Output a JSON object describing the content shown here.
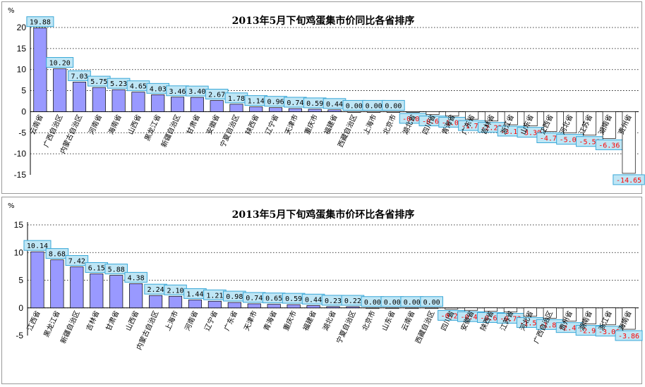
{
  "colors": {
    "positive_bar": "#9999ff",
    "negative_bar": "#ffffff",
    "bar_stroke": "#000000",
    "label_box": "#bfe6f5",
    "label_border": "#3aa8d8",
    "positive_text": "#000000",
    "negative_text": "#ff0000",
    "grid": "#000000"
  },
  "chart_data": [
    {
      "type": "bar",
      "unit": "%",
      "title": "2013年5月下旬鸡蛋集市价同比各省排序",
      "ylim": [
        -15,
        20
      ],
      "yticks": [
        20,
        15,
        10,
        5,
        0,
        -5,
        -10,
        -15
      ],
      "grid": "dotted horizontal",
      "categories": [
        "云南省",
        "广西自治区",
        "内蒙古自治区",
        "河南省",
        "海南省",
        "山西省",
        "黑龙江省",
        "新疆自治区",
        "甘肃省",
        "安徽省",
        "宁夏自治区",
        "陕西省",
        "辽宁省",
        "天津市",
        "重庆市",
        "福建省",
        "西藏自治区",
        "上海市",
        "北京市",
        "湖北省",
        "四川省",
        "青海省",
        "广东省",
        "吉林省",
        "浙江省",
        "山东省",
        "江西省",
        "河北省",
        "江苏省",
        "湖南省",
        "贵州省"
      ],
      "values": [
        19.88,
        10.2,
        7.03,
        5.75,
        5.23,
        4.65,
        4.03,
        3.46,
        3.4,
        2.67,
        1.78,
        1.14,
        0.96,
        0.74,
        0.59,
        0.44,
        0.0,
        0.0,
        0.0,
        -0.08,
        -0.69,
        -1.0,
        -1.79,
        -2.22,
        -3.11,
        -3.39,
        -4.7,
        -5.05,
        -5.58,
        -6.36,
        -14.65
      ],
      "value_labels": [
        "19.88",
        "10.20",
        "7.03",
        "5.75",
        "5.23",
        "4.65",
        "4.03",
        "3.46",
        "3.40",
        "2.67",
        "1.78",
        "1.14",
        "0.96",
        "0.74",
        "0.59",
        "0.44",
        "0.00",
        "0.00",
        "0.00",
        "-0.08",
        "-0.69",
        "-1.00",
        "-1.79",
        "-2.22",
        "-3.11",
        "-3.39",
        "-4.70",
        "-5.05",
        "-5.58",
        "-6.36",
        "-14.65"
      ]
    },
    {
      "type": "bar",
      "unit": "%",
      "title": "2013年5月下旬鸡蛋集市价环比各省排序",
      "ylim": [
        -5,
        15
      ],
      "yticks": [
        15,
        10,
        5,
        0,
        -5
      ],
      "grid": "dotted horizontal",
      "categories": [
        "江西省",
        "黑龙江省",
        "新疆自治区",
        "吉林省",
        "甘肃省",
        "山西省",
        "内蒙古自治区",
        "上海市",
        "河南省",
        "辽宁省",
        "广东省",
        "天津市",
        "青海省",
        "重庆市",
        "福建省",
        "湖北省",
        "宁夏自治区",
        "北京市",
        "山东省",
        "云南省",
        "西藏自治区",
        "四川省",
        "安徽省",
        "陕西省",
        "江苏省",
        "河北省",
        "广西自治区",
        "贵州省",
        "湖南省",
        "浙江省",
        "海南省"
      ],
      "values": [
        10.14,
        8.68,
        7.42,
        6.15,
        5.88,
        4.38,
        2.24,
        2.1,
        1.44,
        1.21,
        0.98,
        0.74,
        0.65,
        0.59,
        0.44,
        0.23,
        0.22,
        0.0,
        0.0,
        0.0,
        0.0,
        -0.21,
        -0.44,
        -0.6,
        -0.73,
        -1.5,
        -1.86,
        -2.41,
        -2.91,
        -3.06,
        -3.86
      ],
      "value_labels": [
        "10.14",
        "8.68",
        "7.42",
        "6.15",
        "5.88",
        "4.38",
        "2.24",
        "2.10",
        "1.44",
        "1.21",
        "0.98",
        "0.74",
        "0.65",
        "0.59",
        "0.44",
        "0.23",
        "0.22",
        "0.00",
        "0.00",
        "0.00",
        "0.00",
        "-0.21",
        "-0.44",
        "-0.60",
        "-0.73",
        "-1.50",
        "-1.86",
        "-2.41",
        "-2.91",
        "-3.06",
        "-3.86"
      ]
    }
  ]
}
